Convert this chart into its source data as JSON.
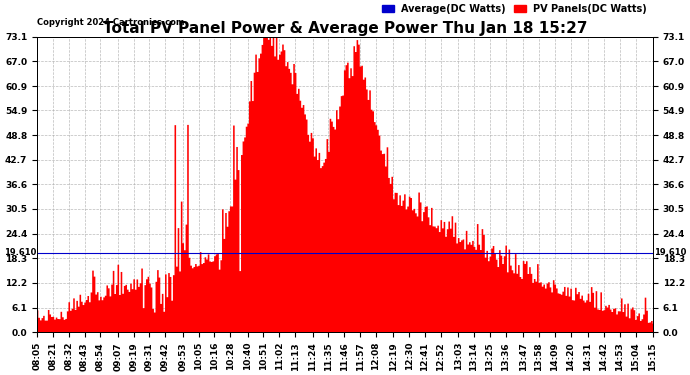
{
  "title": "Total PV Panel Power & Average Power Thu Jan 18 15:27",
  "copyright": "Copyright 2024 Cartronics.com",
  "legend_average": "Average(DC Watts)",
  "legend_pv": "PV Panels(DC Watts)",
  "legend_average_color": "#0000CC",
  "legend_pv_color": "#FF0000",
  "fill_color": "#FF0000",
  "average_line_color": "#0000CC",
  "background_color": "#FFFFFF",
  "plot_background_color": "#FFFFFF",
  "grid_color": "#AAAAAA",
  "avg_level": 19.61,
  "ylim": [
    0.0,
    73.1
  ],
  "yticks": [
    0.0,
    6.1,
    12.2,
    18.3,
    24.4,
    30.5,
    36.6,
    42.7,
    48.8,
    54.9,
    60.9,
    67.0,
    73.1
  ],
  "title_fontsize": 11,
  "tick_fontsize": 6.5,
  "label_fontsize": 7
}
